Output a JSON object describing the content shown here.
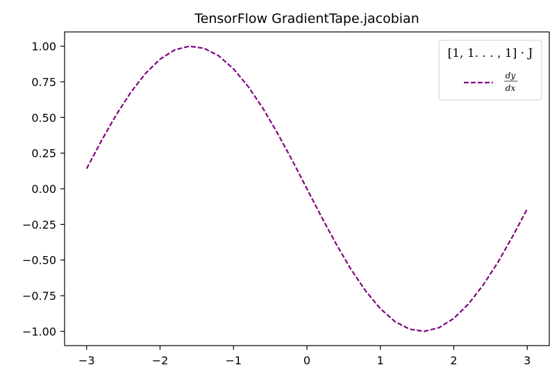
{
  "chart_data": {
    "type": "line",
    "title": "TensorFlow GradientTape.jacobian",
    "xlabel": "",
    "ylabel": "",
    "xlim": [
      -3.3,
      3.3
    ],
    "ylim": [
      -1.1,
      1.1
    ],
    "xticks": [
      -3,
      -2,
      -1,
      0,
      1,
      2,
      3
    ],
    "xtick_labels": [
      "−3",
      "−2",
      "−1",
      "0",
      "1",
      "2",
      "3"
    ],
    "yticks": [
      1.0,
      0.75,
      0.5,
      0.25,
      0.0,
      -0.25,
      -0.5,
      -0.75,
      -1.0
    ],
    "ytick_labels": [
      "1.00",
      "0.75",
      "0.50",
      "0.25",
      "0.00",
      "−0.25",
      "−0.50",
      "−0.75",
      "−1.00"
    ],
    "grid": false,
    "legend": {
      "placement": "top-right",
      "title": "[1, 1. . . , 1] · J",
      "entries": [
        {
          "label_num": "dy",
          "label_den": "dx",
          "style": "dashed"
        }
      ]
    },
    "series": [
      {
        "color": "#800080",
        "style": "dashed",
        "x": [
          -3.0,
          -2.8,
          -2.6,
          -2.4,
          -2.2,
          -2.0,
          -1.8,
          -1.6,
          -1.4,
          -1.2,
          -1.0,
          -0.8,
          -0.6,
          -0.4,
          -0.2,
          0.0,
          0.2,
          0.4,
          0.6,
          0.8,
          1.0,
          1.2,
          1.4,
          1.6,
          1.8,
          2.0,
          2.2,
          2.4,
          2.6,
          2.8,
          3.0
        ],
        "y": [
          0.141,
          0.335,
          0.516,
          0.675,
          0.808,
          0.909,
          0.974,
          1.0,
          0.985,
          0.932,
          0.841,
          0.717,
          0.565,
          0.389,
          0.199,
          0.0,
          -0.199,
          -0.389,
          -0.565,
          -0.717,
          -0.841,
          -0.932,
          -0.985,
          -1.0,
          -0.974,
          -0.909,
          -0.808,
          -0.675,
          -0.516,
          -0.335,
          -0.141
        ]
      }
    ]
  }
}
